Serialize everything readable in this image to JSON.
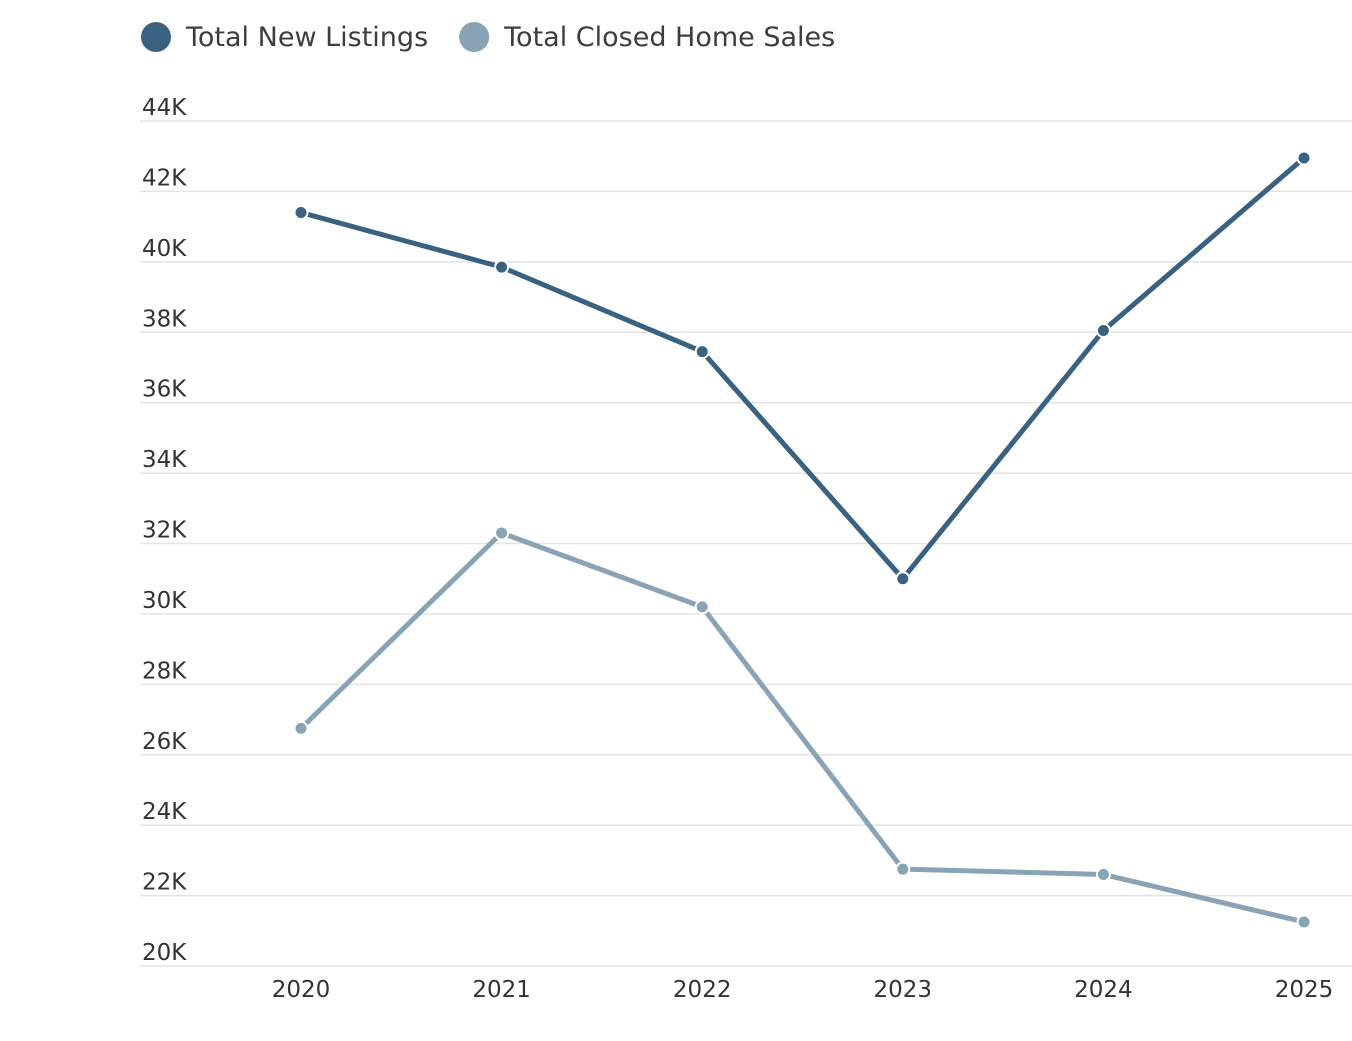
{
  "chart_data": {
    "type": "line",
    "categories": [
      "2020",
      "2021",
      "2022",
      "2023",
      "2024",
      "2025"
    ],
    "series": [
      {
        "name": "Total New Listings",
        "color": "#3a6280",
        "values": [
          41400,
          39850,
          37450,
          31000,
          38050,
          42950
        ]
      },
      {
        "name": "Total Closed Home Sales",
        "color": "#87a3b5",
        "values": [
          26750,
          32300,
          30200,
          22750,
          22600,
          21250
        ]
      }
    ],
    "ylim": [
      20000,
      44000
    ],
    "yticks": [
      20000,
      22000,
      24000,
      26000,
      28000,
      30000,
      32000,
      34000,
      36000,
      38000,
      40000,
      42000,
      44000
    ],
    "ytick_labels": [
      "20K",
      "22K",
      "24K",
      "26K",
      "28K",
      "30K",
      "32K",
      "34K",
      "36K",
      "38K",
      "40K",
      "42K",
      "44K"
    ],
    "grid": true,
    "legend_position": "top-left",
    "title": "",
    "xlabel": "",
    "ylabel": ""
  }
}
